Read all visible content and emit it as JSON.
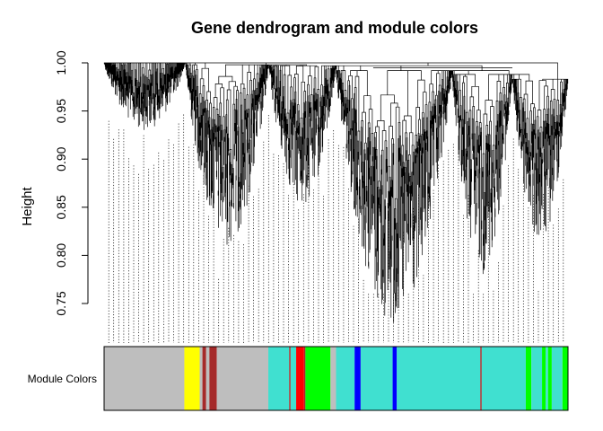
{
  "chart_data": {
    "type": "dendrogram",
    "title": "Gene dendrogram and module colors",
    "ylabel": "Height",
    "xlabel": "",
    "ylim": [
      0.72,
      1.0
    ],
    "yticks": [
      {
        "value": 0.75,
        "label": "0.75"
      },
      {
        "value": 0.8,
        "label": "0.80"
      },
      {
        "value": 0.85,
        "label": "0.85"
      },
      {
        "value": 0.9,
        "label": "0.90"
      },
      {
        "value": 0.95,
        "label": "0.95"
      },
      {
        "value": 1.0,
        "label": "1.00"
      }
    ],
    "module_colors_label": "Module Colors",
    "module_colors": [
      {
        "color": "#bebebe",
        "from": 0.0,
        "to": 0.173
      },
      {
        "color": "#ffff00",
        "from": 0.173,
        "to": 0.206
      },
      {
        "color": "#bebebe",
        "from": 0.206,
        "to": 0.212
      },
      {
        "color": "#a52a2a",
        "from": 0.212,
        "to": 0.22
      },
      {
        "color": "#bebebe",
        "from": 0.22,
        "to": 0.227
      },
      {
        "color": "#a52a2a",
        "from": 0.227,
        "to": 0.243
      },
      {
        "color": "#bebebe",
        "from": 0.243,
        "to": 0.354
      },
      {
        "color": "#40e0d0",
        "from": 0.354,
        "to": 0.399
      },
      {
        "color": "#a52a2a",
        "from": 0.399,
        "to": 0.402
      },
      {
        "color": "#40e0d0",
        "from": 0.402,
        "to": 0.414
      },
      {
        "color": "#ff0000",
        "from": 0.414,
        "to": 0.431
      },
      {
        "color": "#a52a2a",
        "from": 0.431,
        "to": 0.434
      },
      {
        "color": "#00ff00",
        "from": 0.434,
        "to": 0.488
      },
      {
        "color": "#bebebe",
        "from": 0.488,
        "to": 0.5
      },
      {
        "color": "#40e0d0",
        "from": 0.5,
        "to": 0.54
      },
      {
        "color": "#0000ff",
        "from": 0.54,
        "to": 0.553
      },
      {
        "color": "#40e0d0",
        "from": 0.553,
        "to": 0.622
      },
      {
        "color": "#0000ff",
        "from": 0.622,
        "to": 0.631
      },
      {
        "color": "#40e0d0",
        "from": 0.631,
        "to": 0.811
      },
      {
        "color": "#a52a2a",
        "from": 0.811,
        "to": 0.814
      },
      {
        "color": "#40e0d0",
        "from": 0.814,
        "to": 0.909
      },
      {
        "color": "#00ff00",
        "from": 0.909,
        "to": 0.921
      },
      {
        "color": "#40e0d0",
        "from": 0.921,
        "to": 0.944
      },
      {
        "color": "#00ff00",
        "from": 0.944,
        "to": 0.952
      },
      {
        "color": "#40e0d0",
        "from": 0.952,
        "to": 0.957
      },
      {
        "color": "#00ff00",
        "from": 0.957,
        "to": 0.965
      },
      {
        "color": "#40e0d0",
        "from": 0.965,
        "to": 0.988
      },
      {
        "color": "#00ff00",
        "from": 0.988,
        "to": 1.0
      }
    ],
    "major_clusters": [
      {
        "from": 0.0,
        "to": 0.175,
        "top": 1.0,
        "min": 0.93
      },
      {
        "from": 0.175,
        "to": 0.355,
        "top": 0.998,
        "min": 0.81
      },
      {
        "from": 0.355,
        "to": 0.5,
        "top": 0.997,
        "min": 0.85
      },
      {
        "from": 0.5,
        "to": 0.75,
        "top": 0.992,
        "min": 0.725
      },
      {
        "from": 0.75,
        "to": 0.88,
        "top": 0.988,
        "min": 0.78
      },
      {
        "from": 0.88,
        "to": 1.0,
        "top": 0.983,
        "min": 0.81
      }
    ],
    "grid": false
  }
}
